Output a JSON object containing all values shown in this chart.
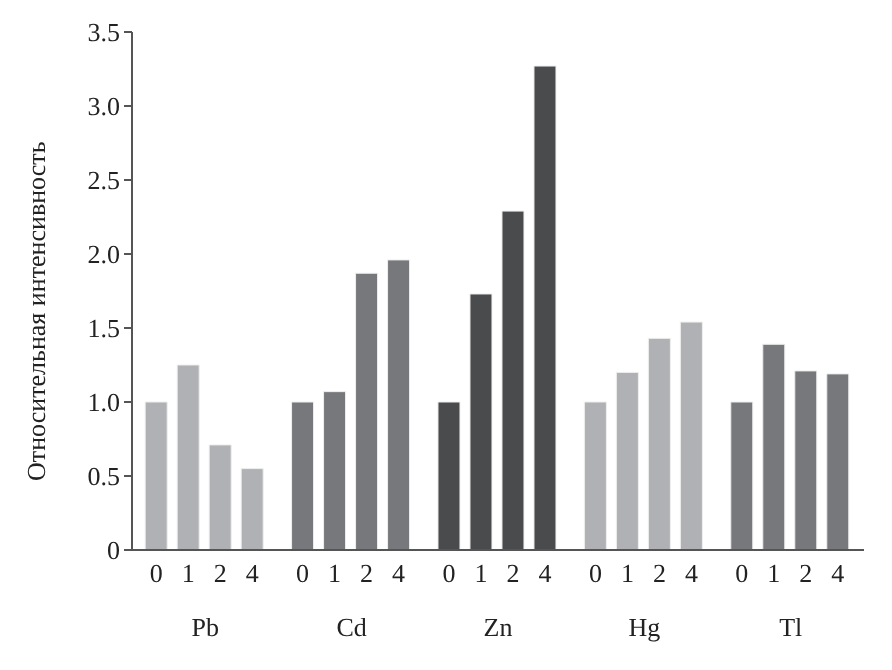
{
  "chart_data": {
    "type": "bar",
    "ylabel": "Относительная интенсивность",
    "categories": [
      "Pb",
      "Cd",
      "Zn",
      "Hg",
      "Tl"
    ],
    "series": [
      {
        "name": "0",
        "colors": [
          "#b0b1b4",
          "#77787b",
          "#4a4b4d",
          "#b0b1b4",
          "#77787b"
        ],
        "values": [
          1.0,
          1.0,
          1.0,
          1.0,
          1.0
        ]
      },
      {
        "name": "1",
        "colors": [
          "#b0b1b4",
          "#77787b",
          "#4a4b4d",
          "#b0b1b4",
          "#77787b"
        ],
        "values": [
          1.25,
          1.07,
          1.73,
          1.2,
          1.39
        ]
      },
      {
        "name": "2",
        "colors": [
          "#b0b1b4",
          "#77787b",
          "#4a4b4d",
          "#b0b1b4",
          "#77787b"
        ],
        "values": [
          0.71,
          1.87,
          2.29,
          1.43,
          1.21
        ]
      },
      {
        "name": "4",
        "colors": [
          "#b0b1b4",
          "#77787b",
          "#4a4b4d",
          "#b0b1b4",
          "#77787b"
        ],
        "values": [
          0.55,
          1.96,
          3.27,
          1.54,
          1.19
        ]
      }
    ],
    "ylim": [
      0,
      3.5
    ],
    "yticks": [
      0,
      {
        "value": 0.5,
        "label": "0.5"
      },
      {
        "value": 1,
        "label": "1.0"
      },
      {
        "value": 1.5,
        "label": "1.5"
      },
      {
        "value": 2,
        "label": "2.0"
      },
      {
        "value": 2.5,
        "label": "2.5"
      },
      {
        "value": 3,
        "label": "3.0"
      },
      {
        "value": 3.5,
        "label": "3.5"
      }
    ],
    "grid": false,
    "legend": false
  }
}
